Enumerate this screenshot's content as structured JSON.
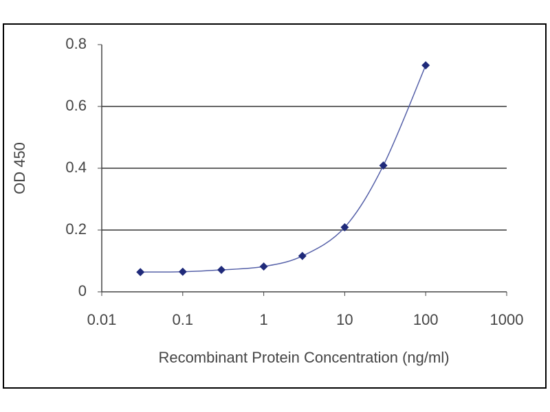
{
  "chart_data": {
    "type": "line",
    "x_label": "Recombinant Protein Concentration (ng/ml)",
    "y_label": "OD 450",
    "x": [
      0.03,
      0.1,
      0.3,
      1,
      3,
      10,
      30,
      100
    ],
    "values": [
      0.064,
      0.065,
      0.071,
      0.082,
      0.116,
      0.209,
      0.409,
      0.733
    ],
    "color": "#1f2a7a",
    "xscale": "log",
    "xlim": [
      0.01,
      1000
    ],
    "xticks": [
      0.01,
      0.1,
      1,
      10,
      100,
      1000
    ],
    "ylim": [
      0,
      0.8
    ],
    "yticks": [
      0,
      0.2,
      0.4,
      0.6,
      0.8
    ],
    "grid": true
  }
}
